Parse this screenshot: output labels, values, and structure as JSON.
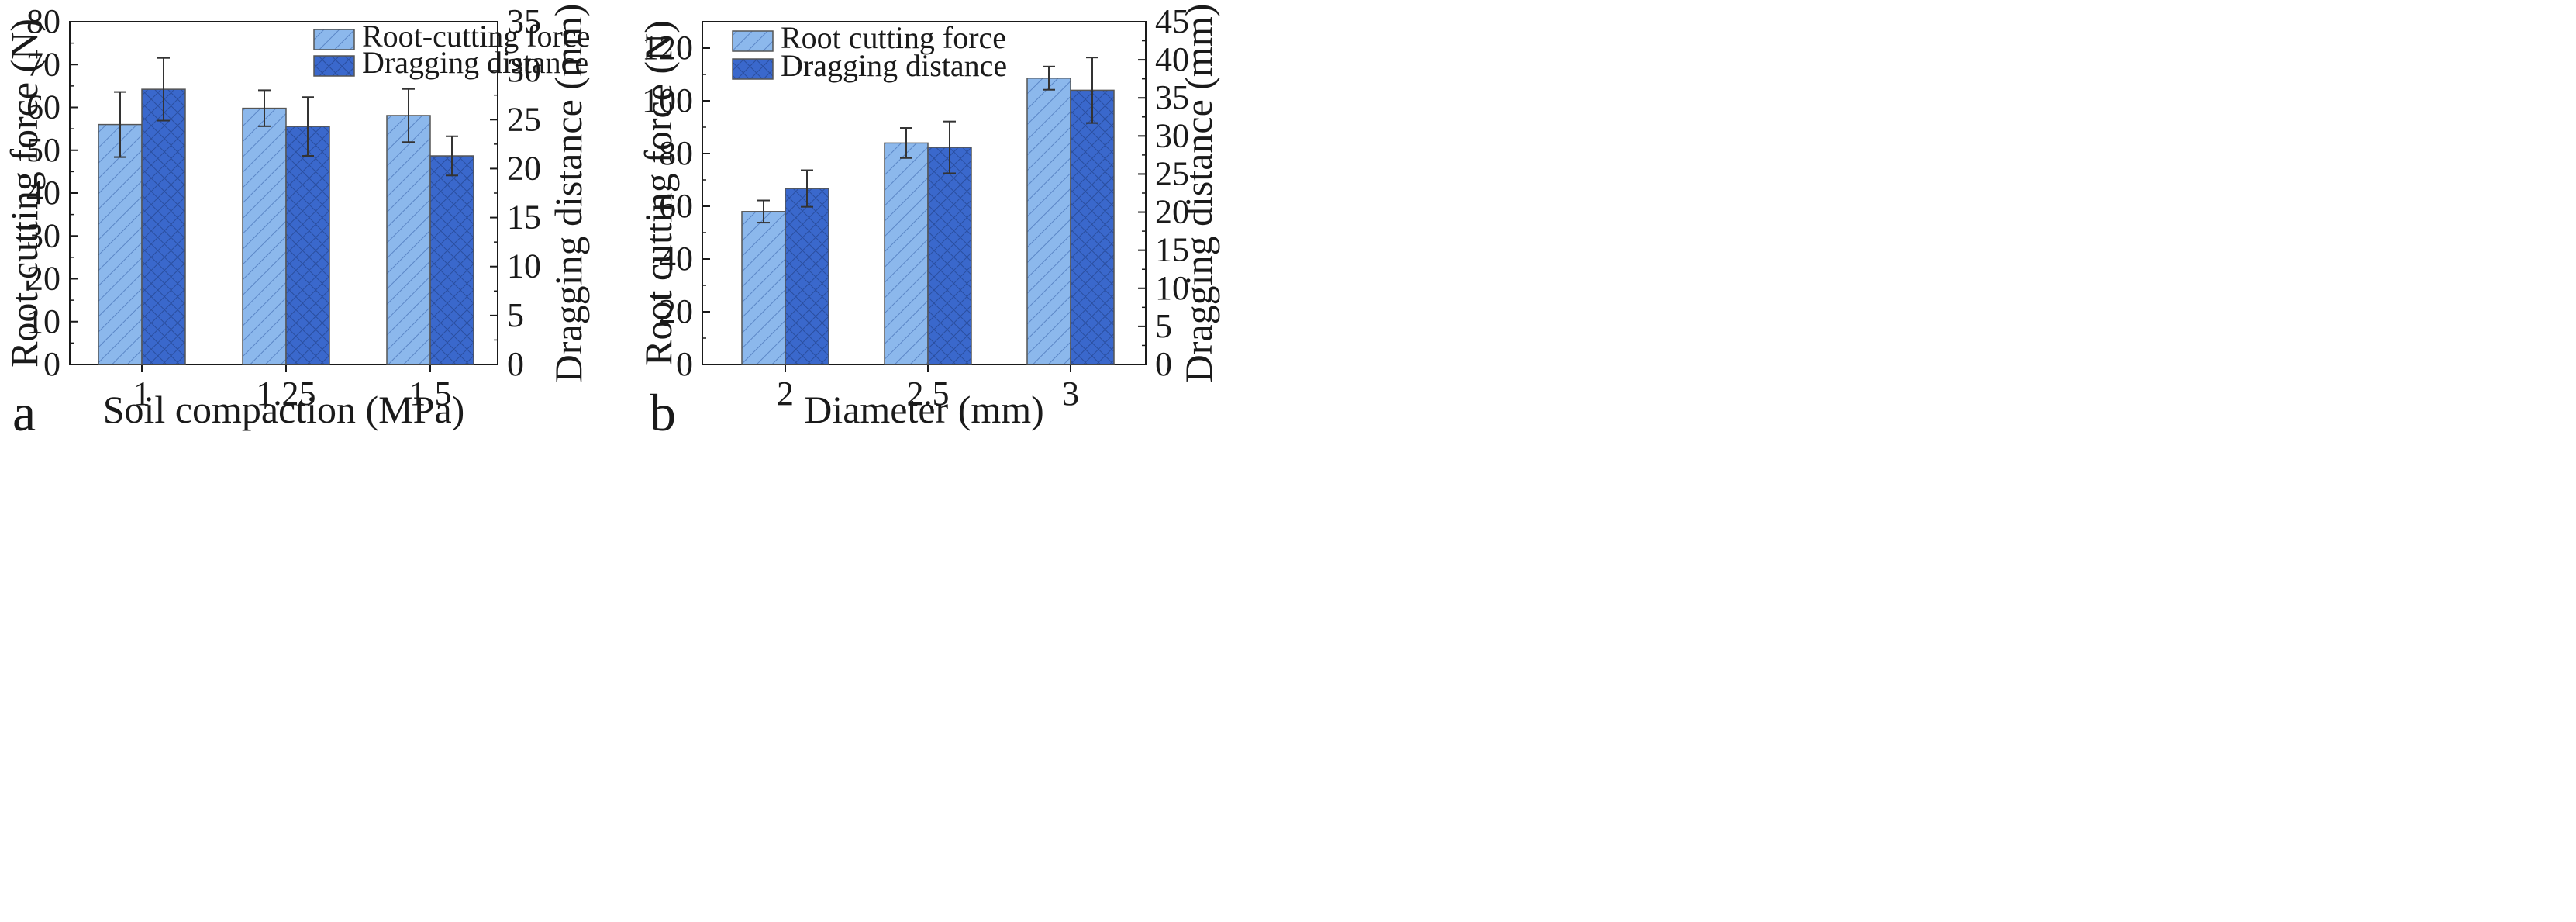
{
  "colors": {
    "light_bar": "#8cb8ec",
    "dark_bar": "#3a68cc",
    "axis": "#1a1a1a"
  },
  "chart_data": [
    {
      "type": "bar",
      "panel_label": "a",
      "xlabel": "Soil compaction (MPa)",
      "ylabel": "Root-cutting force (N)",
      "y2label": "Dragging distance (mm)",
      "categories": [
        "1",
        "1.25",
        "1.5"
      ],
      "ylim": [
        0,
        80
      ],
      "yticks": [
        0,
        10,
        20,
        30,
        40,
        50,
        60,
        70,
        80
      ],
      "y2lim": [
        0,
        35
      ],
      "y2ticks": [
        0,
        5,
        10,
        15,
        20,
        25,
        30,
        35
      ],
      "legend_position": "top-right",
      "series": [
        {
          "name": "Root-cutting force",
          "axis": "left",
          "style": "light",
          "values": [
            56,
            59.8,
            58.1
          ],
          "errors": [
            7.6,
            4.2,
            6.2
          ]
        },
        {
          "name": "Dragging distance",
          "axis": "right",
          "style": "dark",
          "values": [
            28.1,
            24.3,
            21.3
          ],
          "errors": [
            3.2,
            3.0,
            2.0
          ]
        }
      ]
    },
    {
      "type": "bar",
      "panel_label": "b",
      "xlabel": "Diameter (mm)",
      "ylabel": "Root cutting force (N)",
      "y2label": "Dragging distance (mm)",
      "categories": [
        "2",
        "2.5",
        "3"
      ],
      "ylim": [
        0,
        130
      ],
      "yticks": [
        0,
        20,
        40,
        60,
        80,
        100,
        120
      ],
      "y2lim": [
        0,
        45
      ],
      "y2ticks": [
        0,
        5,
        10,
        15,
        20,
        25,
        30,
        35,
        40,
        45
      ],
      "legend_position": "top-left",
      "series": [
        {
          "name": "Root cutting force",
          "axis": "left",
          "style": "light",
          "values": [
            58,
            84,
            108.6
          ],
          "errors": [
            4.2,
            5.7,
            4.4
          ]
        },
        {
          "name": "Dragging distance",
          "axis": "right",
          "style": "dark",
          "values": [
            23.1,
            28.5,
            36.0
          ],
          "errors": [
            2.4,
            3.4,
            4.3
          ]
        }
      ]
    }
  ]
}
